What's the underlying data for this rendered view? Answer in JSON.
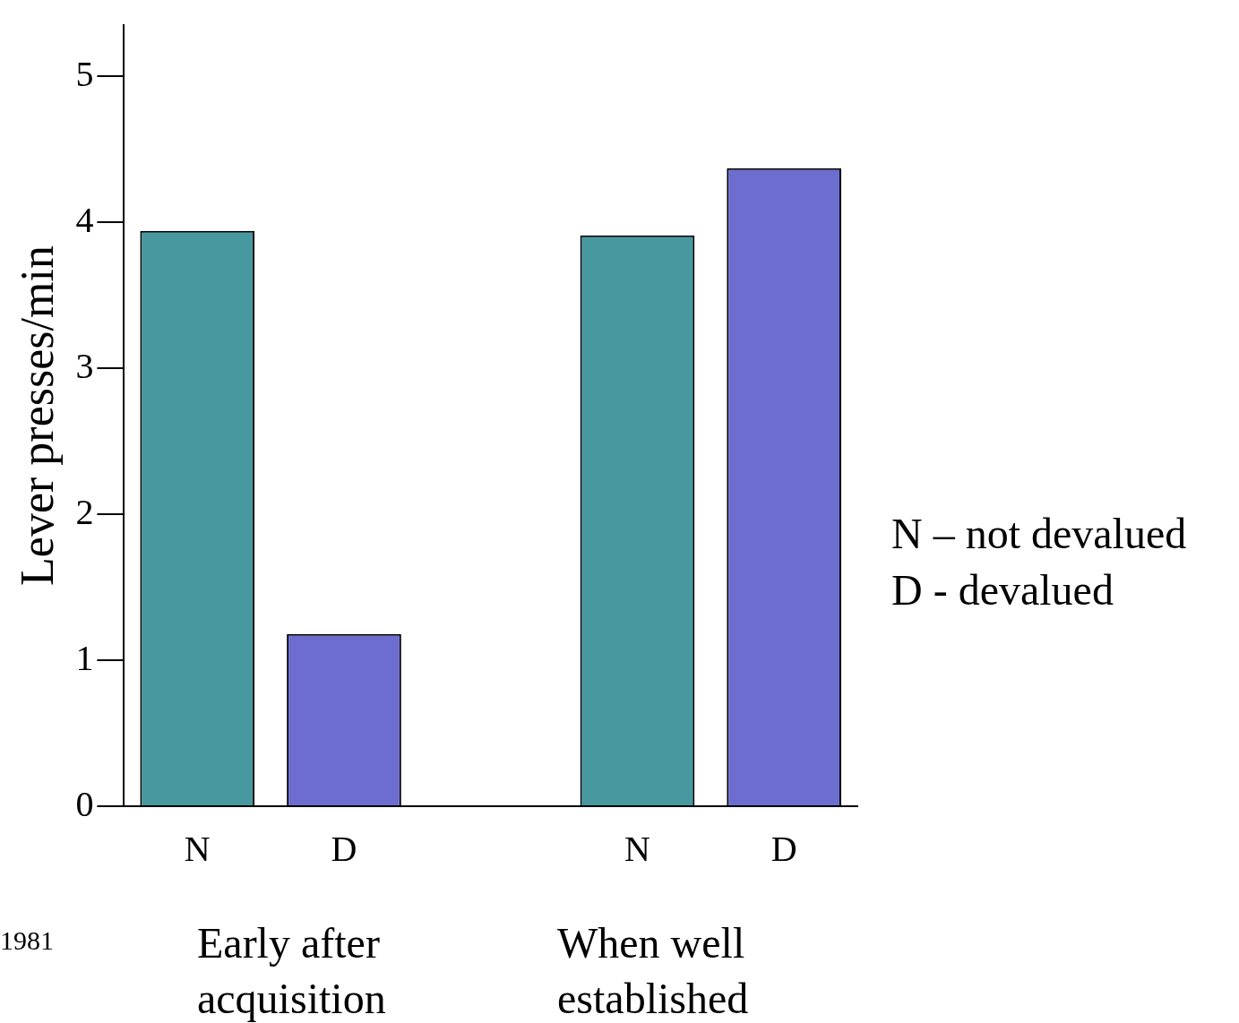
{
  "chart_data": {
    "type": "bar",
    "ylabel": "Lever presses/min",
    "categories": [
      "N",
      "D",
      null,
      "N",
      "D"
    ],
    "values": [
      3.94,
      1.18,
      null,
      3.91,
      4.37
    ],
    "colors": [
      "#4898a0",
      "#6d6ccf",
      "#ffffff",
      "#4898a0",
      "#6d6ccf"
    ],
    "ylim": [
      0,
      5.35
    ],
    "yticks": [
      0,
      1,
      2,
      3,
      4,
      5
    ],
    "annotations": [
      "Early after acquisition",
      "When well established",
      "N – not devalued",
      "D - devalued",
      "1981"
    ]
  }
}
